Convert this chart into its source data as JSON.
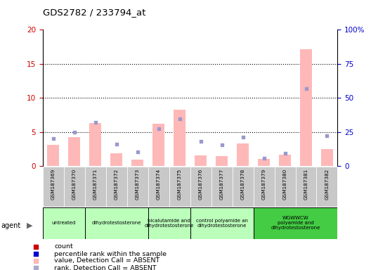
{
  "title": "GDS2782 / 233794_at",
  "samples": [
    "GSM187369",
    "GSM187370",
    "GSM187371",
    "GSM187372",
    "GSM187373",
    "GSM187374",
    "GSM187375",
    "GSM187376",
    "GSM187377",
    "GSM187378",
    "GSM187379",
    "GSM187380",
    "GSM187381",
    "GSM187382"
  ],
  "pink_bars": [
    3.1,
    4.2,
    6.3,
    1.9,
    0.9,
    6.2,
    8.3,
    1.6,
    1.5,
    3.3,
    1.0,
    1.7,
    17.1,
    2.5
  ],
  "blue_squares": [
    20.0,
    25.0,
    32.0,
    16.0,
    10.5,
    27.5,
    34.5,
    18.0,
    15.5,
    21.0,
    5.5,
    9.5,
    57.0,
    22.5
  ],
  "ylim_left": [
    0,
    20
  ],
  "ylim_right": [
    0,
    100
  ],
  "yticks_left": [
    0,
    5,
    10,
    15,
    20
  ],
  "yticks_right": [
    0,
    25,
    50,
    75,
    100
  ],
  "ytick_labels_right": [
    "0",
    "25",
    "50",
    "75",
    "100%"
  ],
  "bar_color_pink": "#ffb8b8",
  "square_color_blue": "#9999cc",
  "bg_color_gray": "#c8c8c8",
  "groups": [
    {
      "label": "untreated",
      "start": 0,
      "end": 2,
      "color": "#bbffbb"
    },
    {
      "label": "dihydrotestosterone",
      "start": 2,
      "end": 5,
      "color": "#bbffbb"
    },
    {
      "label": "bicalutamide and\ndihydrotestosterone",
      "start": 5,
      "end": 7,
      "color": "#bbffbb"
    },
    {
      "label": "control polyamide an\ndihydrotestosterone",
      "start": 7,
      "end": 10,
      "color": "#bbffbb"
    },
    {
      "label": "WGWWCW\npolyamide and\ndihydrotestosterone",
      "start": 10,
      "end": 14,
      "color": "#44cc44"
    }
  ],
  "left_axis_color": "#cc0000",
  "right_axis_color": "#0000cc",
  "legend_items": [
    {
      "color": "#cc0000",
      "label": "count"
    },
    {
      "color": "#0000cc",
      "label": "percentile rank within the sample"
    },
    {
      "color": "#ffb8b8",
      "label": "value, Detection Call = ABSENT"
    },
    {
      "color": "#aaaacc",
      "label": "rank, Detection Call = ABSENT"
    }
  ]
}
